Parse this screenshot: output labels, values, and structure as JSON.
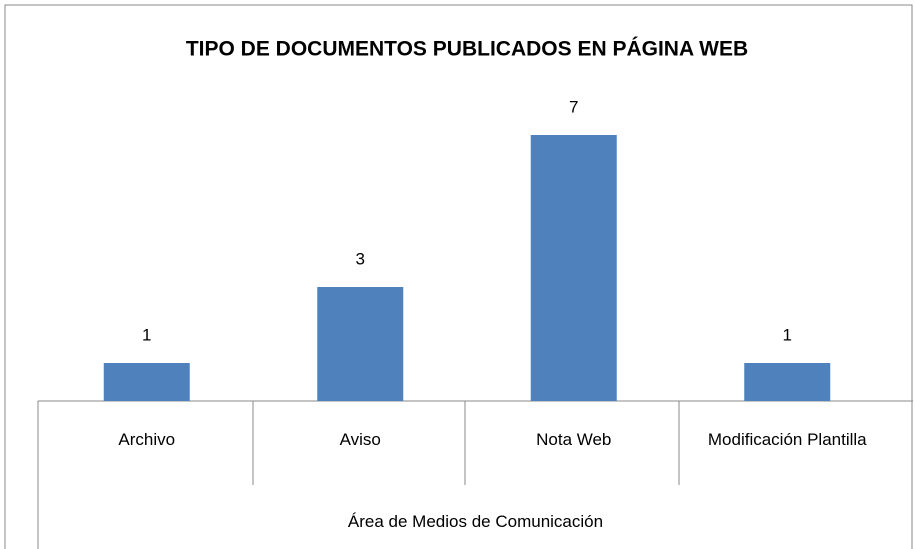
{
  "chart_data": {
    "type": "bar",
    "title": "TIPO DE DOCUMENTOS PUBLICADOS EN PÁGINA WEB",
    "categories": [
      "Archivo",
      "Aviso",
      "Nota Web",
      "Modificación Plantilla"
    ],
    "values": [
      1,
      3,
      7,
      1
    ],
    "color": "#4f81bd",
    "xlabel": "Área de Medios de Comunicación",
    "ylim": [
      0,
      8
    ]
  }
}
